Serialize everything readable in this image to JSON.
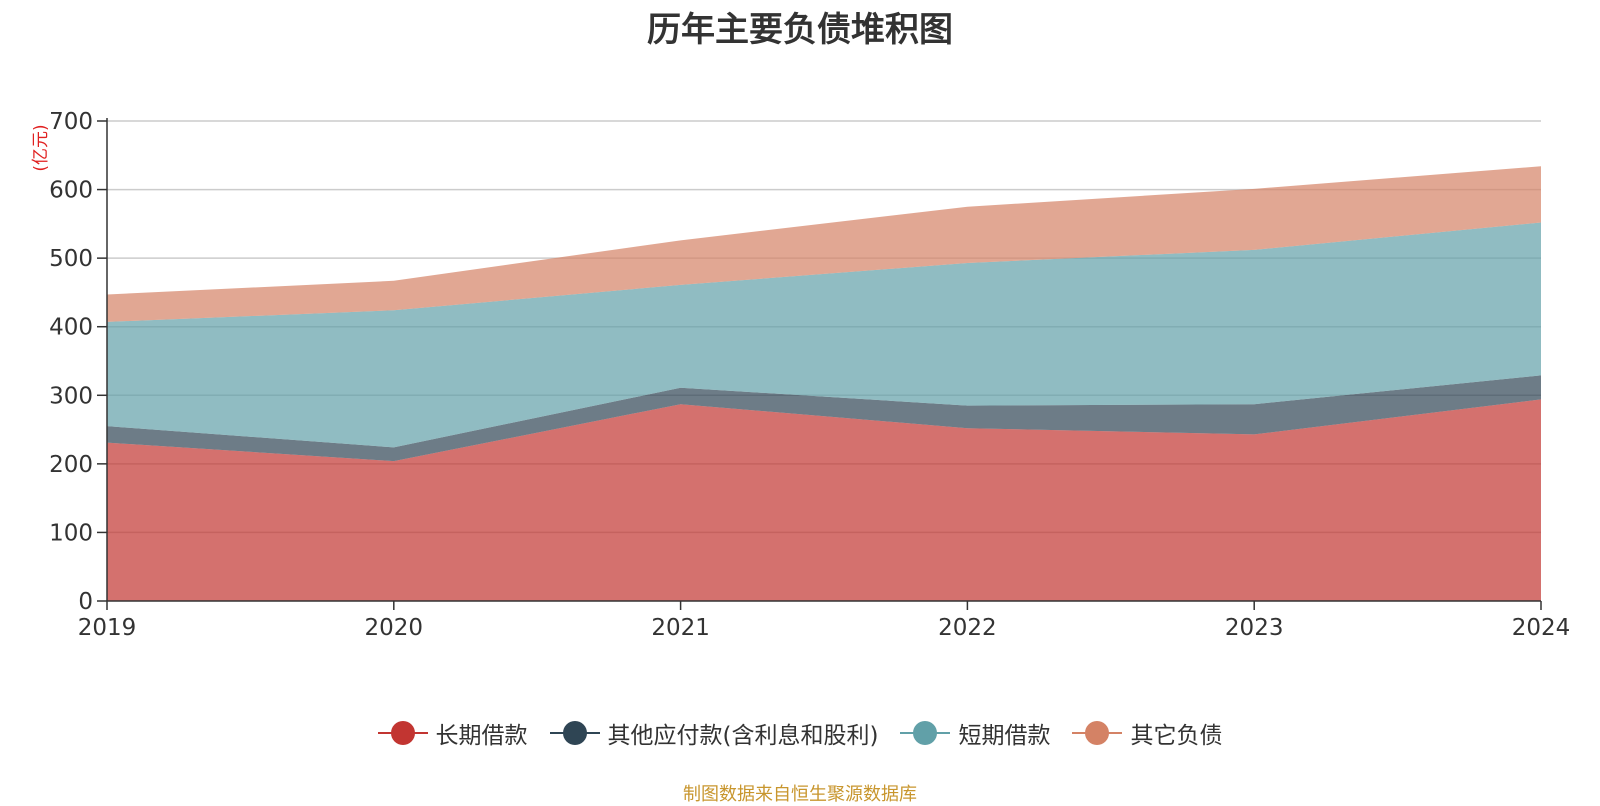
{
  "chart_data": {
    "type": "area",
    "stacked": true,
    "title": "历年主要负债堆积图",
    "ylabel": "(亿元)",
    "xlabel": "",
    "x": [
      "2019",
      "2020",
      "2021",
      "2022",
      "2023",
      "2024"
    ],
    "ylim": [
      0,
      700
    ],
    "yticks": [
      0,
      100,
      200,
      300,
      400,
      500,
      600,
      700
    ],
    "grid": true,
    "legend_position": "bottom",
    "series": [
      {
        "name": "长期借款",
        "color": "#c23531",
        "values": [
          231,
          204,
          287,
          252,
          243,
          294
        ]
      },
      {
        "name": "其他应付款(含利息和股利)",
        "color": "#2f4554",
        "values": [
          24,
          20,
          24,
          33,
          44,
          35
        ]
      },
      {
        "name": "短期借款",
        "color": "#61a0a8",
        "values": [
          152,
          200,
          150,
          208,
          225,
          223
        ]
      },
      {
        "name": "其它负债",
        "color": "#d48265",
        "values": [
          40,
          43,
          65,
          82,
          89,
          82
        ]
      }
    ]
  },
  "source_note": "制图数据来自恒生聚源数据库"
}
